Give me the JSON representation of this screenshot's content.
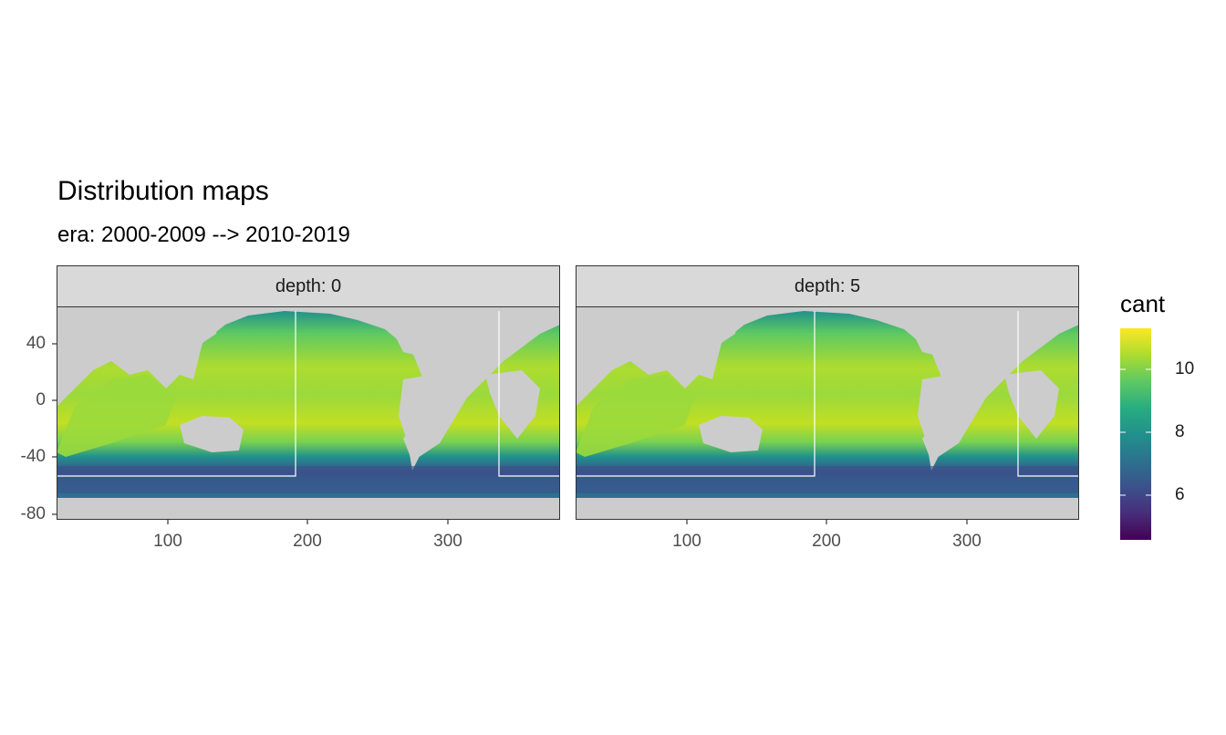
{
  "title": "Distribution maps",
  "subtitle": "era: 2000-2009 --> 2010-2019",
  "panels": [
    {
      "strip_label": "depth: 0"
    },
    {
      "strip_label": "depth: 5"
    }
  ],
  "axes": {
    "x_ticks": [
      "100",
      "200",
      "300"
    ],
    "x_tick_values": [
      100,
      200,
      300
    ],
    "x_range": [
      20,
      380
    ],
    "y_ticks": [
      "40",
      "0",
      "-40",
      "-80"
    ],
    "y_tick_values": [
      40,
      0,
      -40,
      -80
    ],
    "y_range": [
      -85,
      65
    ]
  },
  "legend": {
    "title": "cant",
    "labels": [
      "10",
      "8",
      "6"
    ],
    "label_values": [
      10,
      8,
      6
    ],
    "range": [
      4.7,
      11.3
    ],
    "colors": [
      "#440154",
      "#472d7b",
      "#3b528b",
      "#2c728e",
      "#21918c",
      "#28ae80",
      "#5ec962",
      "#addc30",
      "#fde725"
    ]
  },
  "colors": {
    "land": "#cccccc",
    "panel_border": "#333333",
    "strip_fill": "#d9d9d9",
    "box_outline": "#ffffff"
  },
  "chart_data": {
    "type": "heatmap",
    "variable": "cant",
    "region_boxes": [
      {
        "lon": [
          20,
          190
        ],
        "lat": [
          -60,
          60
        ]
      },
      {
        "lon": [
          335,
          380
        ],
        "lat": [
          -60,
          60
        ]
      }
    ]
  }
}
